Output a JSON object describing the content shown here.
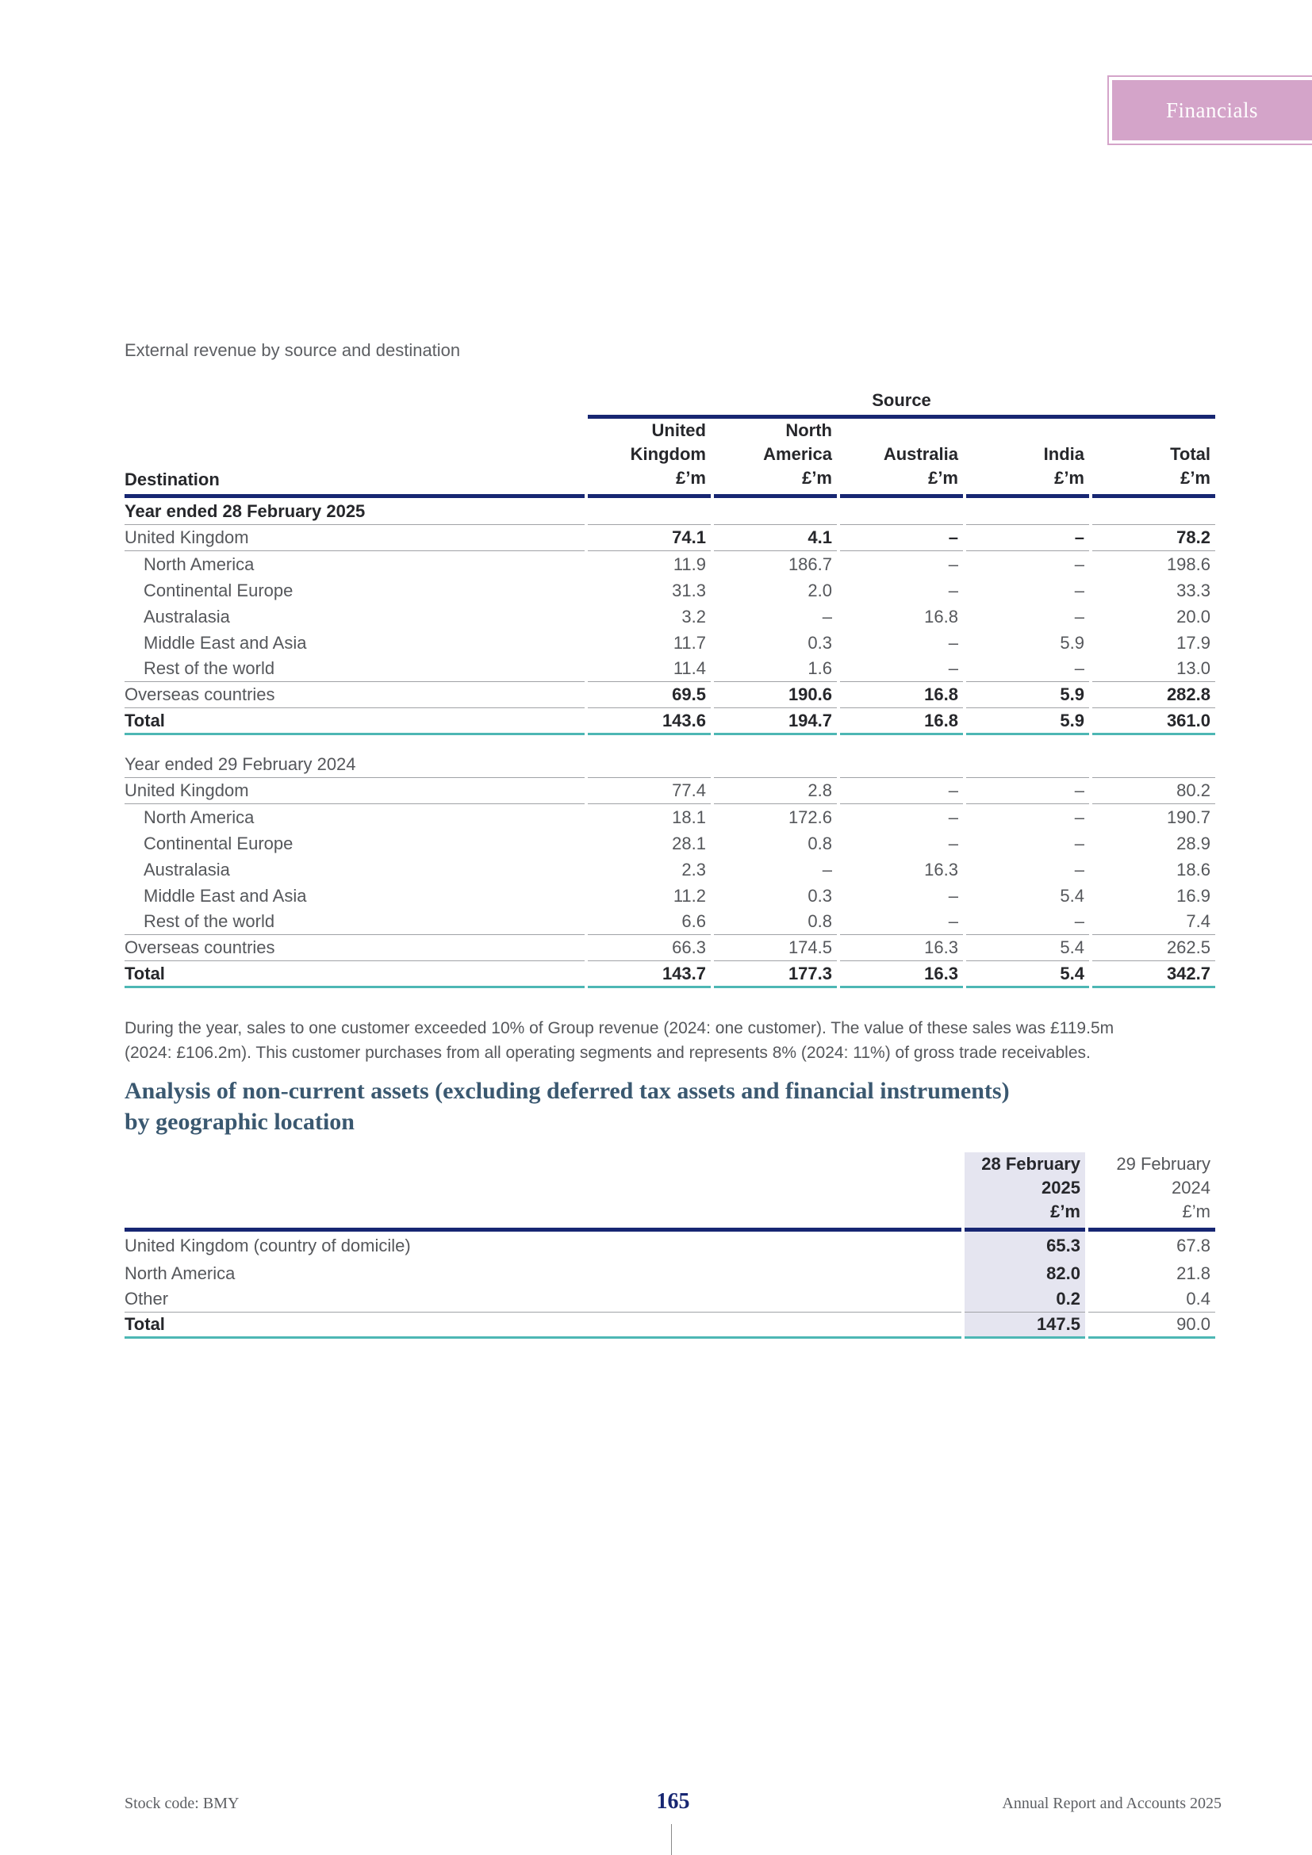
{
  "header": {
    "tab_label": "Financials"
  },
  "colors": {
    "navy_rule": "#172672",
    "teal_rule": "#4db7b4",
    "pink_tab": "#d4a4c9",
    "column_highlight": "#e5e5f0",
    "heading_text": "#3a5870",
    "gray_rule": "#a0a2a6"
  },
  "revenue_table": {
    "caption": "External revenue by source and destination",
    "source_label": "Source",
    "destination_label": "Destination",
    "columns": [
      {
        "line1": "United",
        "line2": "Kingdom",
        "unit": "£’m"
      },
      {
        "line1": "North",
        "line2": "America",
        "unit": "£’m"
      },
      {
        "line1": "",
        "line2": "Australia",
        "unit": "£’m"
      },
      {
        "line1": "",
        "line2": "India",
        "unit": "£’m"
      },
      {
        "line1": "",
        "line2": "Total",
        "unit": "£’m"
      }
    ],
    "sections": [
      {
        "title": "Year ended 28 February 2025",
        "title_bold": true,
        "rows": [
          {
            "label": "United Kingdom",
            "indent": false,
            "bold_values": true,
            "rule_below": true,
            "values": [
              "74.1",
              "4.1",
              "–",
              "–",
              "78.2"
            ]
          },
          {
            "label": "North America",
            "indent": true,
            "bold_values": false,
            "rule_below": false,
            "values": [
              "11.9",
              "186.7",
              "–",
              "–",
              "198.6"
            ]
          },
          {
            "label": "Continental Europe",
            "indent": true,
            "bold_values": false,
            "rule_below": false,
            "values": [
              "31.3",
              "2.0",
              "–",
              "–",
              "33.3"
            ]
          },
          {
            "label": "Australasia",
            "indent": true,
            "bold_values": false,
            "rule_below": false,
            "values": [
              "3.2",
              "–",
              "16.8",
              "–",
              "20.0"
            ]
          },
          {
            "label": "Middle East and Asia",
            "indent": true,
            "bold_values": false,
            "rule_below": false,
            "values": [
              "11.7",
              "0.3",
              "–",
              "5.9",
              "17.9"
            ]
          },
          {
            "label": "Rest of the world",
            "indent": true,
            "bold_values": false,
            "rule_below": true,
            "values": [
              "11.4",
              "1.6",
              "–",
              "–",
              "13.0"
            ]
          },
          {
            "label": "Overseas countries",
            "indent": false,
            "bold_values": true,
            "rule_below": true,
            "values": [
              "69.5",
              "190.6",
              "16.8",
              "5.9",
              "282.8"
            ]
          },
          {
            "label": "Total",
            "indent": false,
            "label_bold": true,
            "bold_values": true,
            "teal_below": true,
            "total": true,
            "values": [
              "143.6",
              "194.7",
              "16.8",
              "5.9",
              "361.0"
            ]
          }
        ]
      },
      {
        "title": "Year ended 29 February 2024",
        "title_bold": false,
        "rows": [
          {
            "label": "United Kingdom",
            "indent": false,
            "bold_values": false,
            "rule_below": true,
            "values": [
              "77.4",
              "2.8",
              "–",
              "–",
              "80.2"
            ]
          },
          {
            "label": "North America",
            "indent": true,
            "bold_values": false,
            "rule_below": false,
            "values": [
              "18.1",
              "172.6",
              "–",
              "–",
              "190.7"
            ]
          },
          {
            "label": "Continental Europe",
            "indent": true,
            "bold_values": false,
            "rule_below": false,
            "values": [
              "28.1",
              "0.8",
              "–",
              "–",
              "28.9"
            ]
          },
          {
            "label": "Australasia",
            "indent": true,
            "bold_values": false,
            "rule_below": false,
            "values": [
              "2.3",
              "–",
              "16.3",
              "–",
              "18.6"
            ]
          },
          {
            "label": "Middle East and Asia",
            "indent": true,
            "bold_values": false,
            "rule_below": false,
            "values": [
              "11.2",
              "0.3",
              "–",
              "5.4",
              "16.9"
            ]
          },
          {
            "label": "Rest of the world",
            "indent": true,
            "bold_values": false,
            "rule_below": true,
            "values": [
              "6.6",
              "0.8",
              "–",
              "–",
              "7.4"
            ]
          },
          {
            "label": "Overseas countries",
            "indent": false,
            "bold_values": false,
            "rule_below": true,
            "values": [
              "66.3",
              "174.5",
              "16.3",
              "5.4",
              "262.5"
            ]
          },
          {
            "label": "Total",
            "indent": false,
            "label_bold": true,
            "bold_values": true,
            "teal_below": true,
            "total": true,
            "values": [
              "143.7",
              "177.3",
              "16.3",
              "5.4",
              "342.7"
            ]
          }
        ]
      }
    ]
  },
  "note_lines": [
    "During the year, sales to one customer exceeded 10% of Group revenue (2024: one customer). The value of these sales was £119.5m",
    "(2024: £106.2m). This customer purchases from all operating segments and represents 8% (2024: 11%) of gross trade receivables."
  ],
  "section_heading_lines": [
    "Analysis of non-current assets (excluding deferred tax assets and financial instruments)",
    "by geographic location"
  ],
  "assets_table": {
    "columns": [
      {
        "line1": "28 February",
        "line2": "2025",
        "unit": "£’m"
      },
      {
        "line1": "29 February",
        "line2": "2024",
        "unit": "£’m"
      }
    ],
    "rows": [
      {
        "label": "United Kingdom (country of domicile)",
        "current": "65.3",
        "prior": "67.8"
      },
      {
        "label": "North America",
        "current": "82.0",
        "prior": "21.8"
      },
      {
        "label": "Other",
        "current": "0.2",
        "prior": "0.4",
        "rule_below": true
      },
      {
        "label": "Total",
        "label_bold": true,
        "current": "147.5",
        "prior": "90.0",
        "teal_below": true
      }
    ]
  },
  "footer": {
    "stock_code": "Stock code: BMY",
    "page_number": "165",
    "report_title": "Annual Report and Accounts 2025"
  }
}
